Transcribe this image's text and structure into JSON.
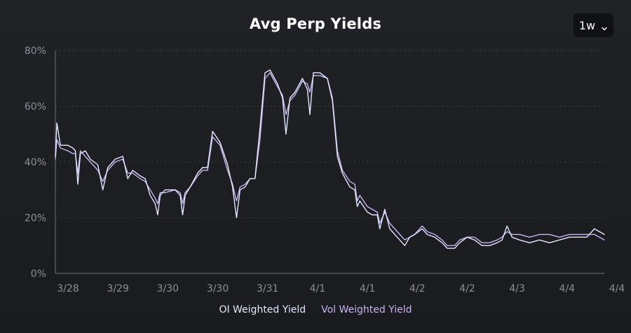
{
  "header": {
    "title": "Avg Perp Yields"
  },
  "range_selector": {
    "value": "1w",
    "icon": "chevron-down-icon"
  },
  "colors": {
    "oi": "#e2e8ff",
    "vol": "#c7b5f2",
    "grid": "#3a3d44",
    "axis": "#6d717b"
  },
  "chart_data": {
    "type": "line",
    "title": "Avg Perp Yields",
    "xlabel": "",
    "ylabel": "",
    "ylim": [
      0,
      80
    ],
    "yticks": [
      "0%",
      "20%",
      "40%",
      "60%",
      "80%"
    ],
    "xticks": [
      "3/28",
      "3/29",
      "3/30",
      "3/30",
      "3/31",
      "4/1",
      "4/1",
      "4/2",
      "4/2",
      "4/3",
      "4/4",
      "4/4"
    ],
    "grid": true,
    "legend_position": "bottom",
    "series": [
      {
        "name": "OI Weighted Yield",
        "color": "#e2e8ff",
        "points": [
          [
            0,
            42
          ],
          [
            0.03,
            54
          ],
          [
            0.1,
            46
          ],
          [
            0.25,
            46
          ],
          [
            0.35,
            45
          ],
          [
            0.4,
            44
          ],
          [
            0.45,
            32
          ],
          [
            0.5,
            43
          ],
          [
            0.6,
            44
          ],
          [
            0.7,
            41
          ],
          [
            0.85,
            39
          ],
          [
            0.95,
            30
          ],
          [
            1.05,
            38
          ],
          [
            1.2,
            41
          ],
          [
            1.35,
            42
          ],
          [
            1.45,
            34
          ],
          [
            1.55,
            37
          ],
          [
            1.7,
            35
          ],
          [
            1.8,
            34
          ],
          [
            1.9,
            28
          ],
          [
            2.0,
            25
          ],
          [
            2.05,
            21
          ],
          [
            2.1,
            28
          ],
          [
            2.2,
            30
          ],
          [
            2.4,
            30
          ],
          [
            2.5,
            28
          ],
          [
            2.55,
            21
          ],
          [
            2.6,
            28
          ],
          [
            2.7,
            31
          ],
          [
            2.85,
            36
          ],
          [
            2.95,
            38
          ],
          [
            3.05,
            38
          ],
          [
            3.15,
            51
          ],
          [
            3.3,
            47
          ],
          [
            3.45,
            39
          ],
          [
            3.55,
            31
          ],
          [
            3.6,
            24
          ],
          [
            3.63,
            20
          ],
          [
            3.7,
            30
          ],
          [
            3.8,
            31
          ],
          [
            3.9,
            34
          ],
          [
            4.0,
            34
          ],
          [
            4.1,
            52
          ],
          [
            4.2,
            72
          ],
          [
            4.3,
            73
          ],
          [
            4.45,
            68
          ],
          [
            4.55,
            63
          ],
          [
            4.62,
            50
          ],
          [
            4.7,
            63
          ],
          [
            4.8,
            65
          ],
          [
            4.95,
            70
          ],
          [
            5.05,
            66
          ],
          [
            5.1,
            57
          ],
          [
            5.17,
            72
          ],
          [
            5.3,
            72
          ],
          [
            5.45,
            70
          ],
          [
            5.55,
            62
          ],
          [
            5.65,
            42
          ],
          [
            5.75,
            36
          ],
          [
            5.9,
            31
          ],
          [
            6.0,
            30
          ],
          [
            6.05,
            24
          ],
          [
            6.1,
            26
          ],
          [
            6.25,
            22
          ],
          [
            6.35,
            21
          ],
          [
            6.45,
            21
          ],
          [
            6.5,
            16
          ],
          [
            6.6,
            23
          ],
          [
            6.7,
            16
          ],
          [
            6.85,
            13
          ],
          [
            6.9,
            12
          ],
          [
            7.0,
            10
          ],
          [
            7.1,
            13
          ],
          [
            7.2,
            14
          ],
          [
            7.35,
            16
          ],
          [
            7.45,
            14
          ],
          [
            7.6,
            13
          ],
          [
            7.75,
            11
          ],
          [
            7.85,
            9
          ],
          [
            8.0,
            9
          ],
          [
            8.1,
            11
          ],
          [
            8.25,
            13
          ],
          [
            8.4,
            12
          ],
          [
            8.55,
            10
          ],
          [
            8.7,
            10
          ],
          [
            8.85,
            11
          ],
          [
            8.95,
            12
          ],
          [
            9.05,
            17
          ],
          [
            9.15,
            13
          ],
          [
            9.3,
            12
          ],
          [
            9.5,
            11
          ],
          [
            9.7,
            12
          ],
          [
            9.9,
            11
          ],
          [
            10.1,
            12
          ],
          [
            10.3,
            13
          ],
          [
            10.5,
            13
          ],
          [
            10.65,
            13
          ],
          [
            10.8,
            16
          ],
          [
            11.0,
            14
          ]
        ]
      },
      {
        "name": "Vol Weighted Yield",
        "color": "#c7b5f2",
        "points": [
          [
            0,
            41
          ],
          [
            0.03,
            48
          ],
          [
            0.1,
            45
          ],
          [
            0.25,
            44
          ],
          [
            0.35,
            43
          ],
          [
            0.4,
            43
          ],
          [
            0.45,
            36
          ],
          [
            0.5,
            44
          ],
          [
            0.6,
            42
          ],
          [
            0.7,
            40
          ],
          [
            0.85,
            37
          ],
          [
            0.95,
            33
          ],
          [
            1.05,
            37
          ],
          [
            1.2,
            40
          ],
          [
            1.35,
            41
          ],
          [
            1.45,
            36
          ],
          [
            1.55,
            36
          ],
          [
            1.7,
            34
          ],
          [
            1.8,
            33
          ],
          [
            1.9,
            30
          ],
          [
            2.0,
            27
          ],
          [
            2.05,
            25
          ],
          [
            2.1,
            29
          ],
          [
            2.2,
            29
          ],
          [
            2.4,
            30
          ],
          [
            2.5,
            29
          ],
          [
            2.55,
            25
          ],
          [
            2.6,
            29
          ],
          [
            2.7,
            31
          ],
          [
            2.85,
            35
          ],
          [
            2.95,
            37
          ],
          [
            3.05,
            37
          ],
          [
            3.15,
            49
          ],
          [
            3.3,
            46
          ],
          [
            3.45,
            37
          ],
          [
            3.55,
            32
          ],
          [
            3.6,
            28
          ],
          [
            3.63,
            26
          ],
          [
            3.7,
            31
          ],
          [
            3.8,
            32
          ],
          [
            3.9,
            34
          ],
          [
            4.0,
            34
          ],
          [
            4.1,
            48
          ],
          [
            4.2,
            70
          ],
          [
            4.3,
            72
          ],
          [
            4.45,
            67
          ],
          [
            4.55,
            64
          ],
          [
            4.62,
            57
          ],
          [
            4.7,
            62
          ],
          [
            4.8,
            64
          ],
          [
            4.95,
            69
          ],
          [
            5.05,
            68
          ],
          [
            5.1,
            65
          ],
          [
            5.17,
            71
          ],
          [
            5.3,
            71
          ],
          [
            5.45,
            70
          ],
          [
            5.55,
            63
          ],
          [
            5.65,
            44
          ],
          [
            5.75,
            37
          ],
          [
            5.9,
            33
          ],
          [
            6.0,
            32
          ],
          [
            6.05,
            26
          ],
          [
            6.1,
            28
          ],
          [
            6.25,
            24
          ],
          [
            6.35,
            23
          ],
          [
            6.45,
            22
          ],
          [
            6.5,
            18
          ],
          [
            6.6,
            22
          ],
          [
            6.7,
            18
          ],
          [
            6.85,
            15
          ],
          [
            6.9,
            14
          ],
          [
            7.0,
            12
          ],
          [
            7.1,
            13
          ],
          [
            7.2,
            14
          ],
          [
            7.35,
            17
          ],
          [
            7.45,
            15
          ],
          [
            7.6,
            14
          ],
          [
            7.75,
            12
          ],
          [
            7.85,
            10
          ],
          [
            8.0,
            10
          ],
          [
            8.1,
            12
          ],
          [
            8.25,
            13
          ],
          [
            8.4,
            13
          ],
          [
            8.55,
            11
          ],
          [
            8.7,
            11
          ],
          [
            8.85,
            12
          ],
          [
            8.95,
            13
          ],
          [
            9.05,
            15
          ],
          [
            9.15,
            14
          ],
          [
            9.3,
            14
          ],
          [
            9.5,
            13
          ],
          [
            9.7,
            14
          ],
          [
            9.9,
            14
          ],
          [
            10.1,
            13
          ],
          [
            10.3,
            14
          ],
          [
            10.5,
            14
          ],
          [
            10.65,
            14
          ],
          [
            10.8,
            14
          ],
          [
            11.0,
            12
          ]
        ]
      }
    ]
  }
}
